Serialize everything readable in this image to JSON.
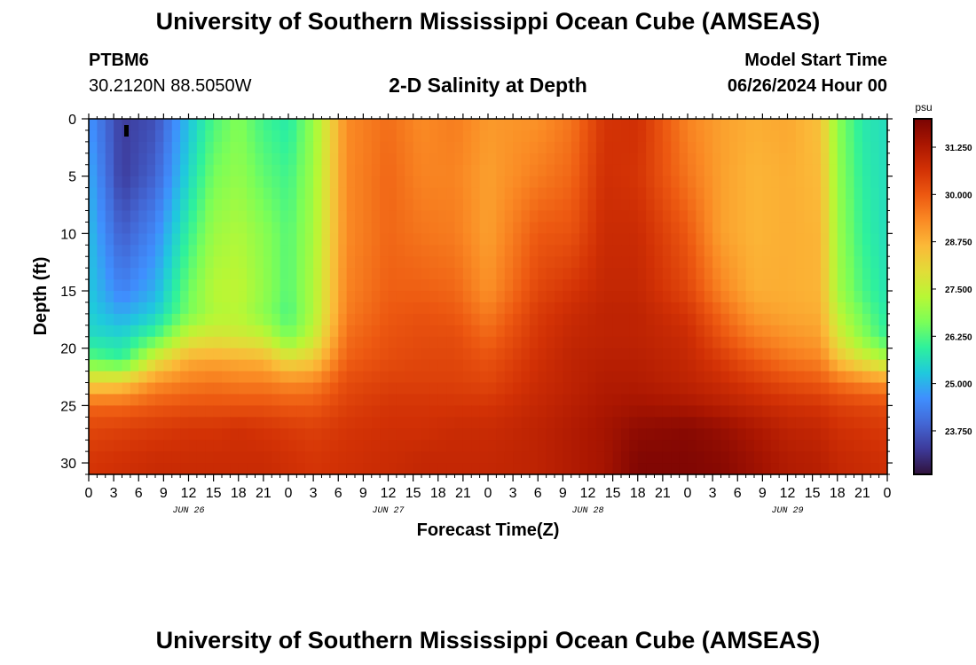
{
  "header": {
    "title": "University of Southern Mississippi Ocean Cube (AMSEAS)",
    "station_id": "PTBM6",
    "coordinates": "30.2120N  88.5050W",
    "plot_title": "2-D Salinity at Depth",
    "model_start_label": "Model Start Time",
    "model_start_value": "06/26/2024 Hour 00"
  },
  "footer": {
    "title": "University of Southern Mississippi Ocean Cube (AMSEAS)"
  },
  "chart_data": {
    "type": "heatmap",
    "title": "2-D Salinity at Depth",
    "xlabel": "Forecast Time(Z)",
    "ylabel": "Depth (ft)",
    "units": "psu",
    "x_range_hours": [
      0,
      96
    ],
    "y_range_ft": [
      0,
      31
    ],
    "x_tick_step_hours": 3,
    "x_tick_labels": [
      "0",
      "3",
      "6",
      "9",
      "12",
      "15",
      "18",
      "21",
      "0",
      "3",
      "6",
      "9",
      "12",
      "15",
      "18",
      "21",
      "0",
      "3",
      "6",
      "9",
      "12",
      "15",
      "18",
      "21",
      "0",
      "3",
      "6",
      "9",
      "12",
      "15",
      "18",
      "21",
      "0"
    ],
    "day_labels": [
      {
        "label": "JUN 26",
        "hour": 12
      },
      {
        "label": "JUN 27",
        "hour": 36
      },
      {
        "label": "JUN 28",
        "hour": 60
      },
      {
        "label": "JUN 29",
        "hour": 84
      }
    ],
    "y_ticks": [
      0,
      5,
      10,
      15,
      20,
      25,
      30
    ],
    "colorbar": {
      "min": 22.6,
      "max": 32.0,
      "ticks": [
        23.75,
        25.0,
        26.25,
        27.5,
        28.75,
        30.0,
        31.25
      ],
      "tick_labels": [
        "23.750",
        "25.000",
        "26.250",
        "27.500",
        "28.750",
        "30.000",
        "31.250"
      ],
      "colors": [
        "#30123b",
        "#3d3a9a",
        "#4367d5",
        "#3f8ffe",
        "#1fc9dd",
        "#2ef19c",
        "#7bfe58",
        "#b8f735",
        "#e2dc38",
        "#fbb938",
        "#fa8a24",
        "#ed5911",
        "#d23105",
        "#aa1601",
        "#7a0403"
      ]
    },
    "field": {
      "hours": [
        0,
        4,
        8,
        12,
        15,
        18,
        21,
        24,
        27,
        31,
        36,
        40,
        44,
        48,
        54,
        58,
        62,
        66,
        72,
        76,
        80,
        84,
        88,
        90,
        93,
        96
      ],
      "depths_ft": [
        0,
        5,
        10,
        15,
        17,
        19,
        21,
        23,
        25,
        27,
        30,
        31
      ],
      "salinity": [
        [
          24.7,
          23.3,
          23.6,
          25.2,
          26.2,
          26.7,
          26.1,
          25.8,
          26.9,
          29.3,
          29.7,
          29.3,
          29.5,
          29.1,
          29.2,
          29.6,
          30.6,
          30.7,
          29.4,
          29.0,
          28.8,
          28.9,
          28.5,
          26.8,
          25.8,
          25.6
        ],
        [
          25.0,
          23.3,
          23.9,
          25.5,
          26.6,
          26.9,
          26.4,
          26.1,
          27.0,
          29.3,
          29.8,
          29.4,
          29.4,
          29.0,
          29.5,
          29.8,
          30.7,
          30.6,
          29.6,
          29.0,
          28.7,
          28.8,
          28.6,
          26.9,
          25.9,
          25.6
        ],
        [
          25.2,
          23.8,
          24.5,
          26.0,
          27.0,
          27.2,
          26.8,
          26.3,
          27.1,
          29.3,
          29.8,
          29.6,
          29.5,
          29.0,
          30.0,
          30.1,
          30.8,
          30.8,
          30.0,
          29.0,
          28.7,
          28.8,
          28.7,
          27.0,
          26.0,
          25.6
        ],
        [
          25.3,
          24.4,
          25.0,
          26.5,
          27.3,
          27.4,
          26.9,
          26.3,
          27.2,
          29.4,
          29.9,
          29.9,
          29.8,
          29.2,
          30.3,
          30.6,
          30.9,
          30.9,
          30.3,
          29.4,
          28.8,
          28.8,
          28.7,
          27.1,
          26.2,
          25.7
        ],
        [
          25.4,
          24.9,
          25.4,
          26.6,
          27.2,
          27.3,
          26.8,
          26.2,
          27.2,
          29.5,
          30.0,
          30.1,
          30.0,
          29.5,
          30.5,
          30.8,
          31.0,
          31.0,
          30.6,
          29.8,
          29.1,
          28.9,
          28.8,
          27.4,
          26.5,
          25.8
        ],
        [
          25.6,
          25.5,
          26.2,
          27.6,
          27.8,
          27.7,
          27.5,
          26.6,
          27.5,
          29.7,
          30.1,
          30.2,
          30.2,
          29.8,
          30.6,
          30.9,
          31.0,
          31.0,
          30.8,
          30.1,
          29.5,
          29.2,
          29.0,
          27.8,
          26.8,
          26.0
        ],
        [
          26.4,
          26.0,
          27.8,
          28.8,
          28.9,
          28.8,
          28.7,
          28.0,
          28.3,
          29.9,
          30.2,
          30.3,
          30.3,
          30.1,
          30.7,
          31.0,
          31.1,
          31.1,
          30.9,
          30.5,
          30.0,
          29.6,
          29.4,
          28.5,
          27.8,
          27.2
        ],
        [
          28.2,
          28.3,
          29.2,
          29.5,
          29.6,
          29.5,
          29.5,
          29.3,
          29.4,
          30.2,
          30.4,
          30.4,
          30.4,
          30.3,
          30.8,
          31.0,
          31.2,
          31.2,
          31.0,
          30.8,
          30.5,
          30.2,
          30.0,
          29.7,
          29.4,
          29.2
        ],
        [
          29.8,
          29.8,
          30.0,
          30.1,
          30.1,
          30.1,
          30.1,
          30.0,
          30.0,
          30.4,
          30.6,
          30.6,
          30.6,
          30.6,
          30.9,
          31.1,
          31.3,
          31.4,
          31.3,
          31.1,
          30.9,
          30.7,
          30.6,
          30.4,
          30.3,
          30.2
        ],
        [
          30.3,
          30.4,
          30.5,
          30.6,
          30.6,
          30.7,
          30.6,
          30.5,
          30.4,
          30.6,
          30.7,
          30.7,
          30.8,
          30.8,
          31.0,
          31.2,
          31.4,
          31.7,
          31.8,
          31.6,
          31.3,
          31.0,
          30.9,
          30.7,
          30.6,
          30.5
        ],
        [
          30.6,
          30.7,
          30.8,
          30.8,
          30.8,
          30.8,
          30.8,
          30.7,
          30.6,
          30.7,
          30.8,
          30.9,
          30.9,
          30.9,
          31.0,
          31.2,
          31.4,
          31.9,
          31.9,
          31.8,
          31.5,
          31.2,
          31.1,
          30.9,
          30.8,
          30.7
        ],
        [
          30.6,
          30.7,
          30.8,
          30.8,
          30.8,
          30.8,
          30.8,
          30.7,
          30.6,
          30.7,
          30.8,
          30.9,
          30.9,
          30.9,
          31.0,
          31.2,
          31.4,
          31.9,
          31.9,
          31.8,
          31.5,
          31.2,
          31.1,
          30.9,
          30.8,
          30.7
        ]
      ]
    }
  }
}
